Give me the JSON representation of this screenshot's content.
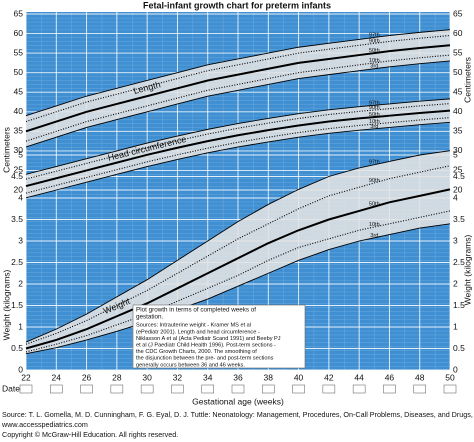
{
  "chart_data": {
    "type": "line",
    "title": "Fetal-infant growth chart for preterm infants",
    "xlabel": "Gestational age (weeks)",
    "date_label": "Date:",
    "ylabel": "Centimeters",
    "y2label": "Weight (kilograms)",
    "x": [
      22,
      24,
      26,
      28,
      30,
      32,
      34,
      36,
      38,
      40,
      42,
      44,
      46,
      48,
      50
    ],
    "xlim": [
      22,
      50
    ],
    "xticks": [
      22,
      24,
      26,
      28,
      30,
      32,
      34,
      36,
      38,
      40,
      42,
      44,
      46,
      48,
      50
    ],
    "ylim": [
      20,
      65
    ],
    "yticks": [
      20,
      25,
      30,
      35,
      40,
      45,
      50,
      55,
      60,
      65
    ],
    "y2lim": [
      0,
      5
    ],
    "y2ticks": [
      0,
      0.5,
      1,
      1.5,
      2,
      2.5,
      3,
      3.5,
      4,
      4.5,
      5
    ],
    "grid": true,
    "background": "#3f8fd2",
    "band_color": "#e4e4e4",
    "groups": [
      {
        "label": "Length",
        "axis": "y",
        "series": [
          {
            "name": "97th",
            "style": "solid",
            "values": [
              39,
              41.5,
              44,
              46,
              48,
              50,
              52,
              53.5,
              55,
              56.5,
              57.5,
              58.5,
              59.5,
              60.3,
              61
            ]
          },
          {
            "name": "90th",
            "style": "dotted",
            "values": [
              37.5,
              40,
              42.5,
              44.5,
              46.5,
              48.5,
              50.5,
              52,
              53.5,
              55,
              56,
              57,
              58,
              58.8,
              59.5
            ]
          },
          {
            "name": "50th",
            "style": "bold",
            "values": [
              35,
              37.5,
              40,
              42,
              44,
              46,
              48,
              49.5,
              51,
              52.5,
              53.5,
              54.5,
              55.5,
              56.3,
              57
            ]
          },
          {
            "name": "10th",
            "style": "dotted",
            "values": [
              32.5,
              35,
              37.5,
              39.5,
              41.5,
              43.5,
              45.5,
              47,
              48.5,
              50,
              51,
              52,
              53,
              53.8,
              54.5
            ]
          },
          {
            "name": "3rd",
            "style": "solid",
            "values": [
              31,
              33.5,
              36,
              38,
              40,
              42,
              44,
              45.5,
              47,
              48.5,
              49.5,
              50.5,
              51.5,
              52.3,
              53
            ]
          }
        ]
      },
      {
        "label": "Head circumference",
        "axis": "y",
        "series": [
          {
            "name": "97th",
            "style": "solid",
            "values": [
              24,
              26,
              28,
              30,
              32,
              33.8,
              35.5,
              37,
              38.3,
              39.5,
              40.5,
              41.3,
              42,
              42.7,
              43.3
            ]
          },
          {
            "name": "90th",
            "style": "dotted",
            "values": [
              22.8,
              24.8,
              26.8,
              28.8,
              30.8,
              32.6,
              34.3,
              35.8,
              37.1,
              38.3,
              39.3,
              40.1,
              40.8,
              41.5,
              42.1
            ]
          },
          {
            "name": "50th",
            "style": "bold",
            "values": [
              21,
              23,
              25,
              27,
              29,
              30.8,
              32.5,
              34,
              35.3,
              36.5,
              37.5,
              38.3,
              39,
              39.7,
              40.3
            ]
          },
          {
            "name": "10th",
            "style": "dotted",
            "values": [
              19.2,
              21.2,
              23.2,
              25.2,
              27.2,
              29,
              30.7,
              32.2,
              33.5,
              34.7,
              35.7,
              36.5,
              37.2,
              37.9,
              38.5
            ]
          },
          {
            "name": "3rd",
            "style": "solid",
            "values": [
              18,
              20,
              22,
              24,
              26,
              27.8,
              29.5,
              31,
              32.3,
              33.5,
              34.5,
              35.3,
              36,
              36.7,
              37.3
            ]
          }
        ]
      },
      {
        "label": "Weight",
        "axis": "y2",
        "series": [
          {
            "name": "97th",
            "style": "solid",
            "values": [
              0.65,
              0.95,
              1.3,
              1.7,
              2.1,
              2.55,
              3.0,
              3.45,
              3.85,
              4.2,
              4.5,
              4.7,
              4.85,
              5.0,
              5.1
            ]
          },
          {
            "name": "90th",
            "style": "dotted",
            "values": [
              0.6,
              0.85,
              1.15,
              1.5,
              1.85,
              2.25,
              2.65,
              3.05,
              3.4,
              3.75,
              4.05,
              4.25,
              4.45,
              4.6,
              4.75
            ]
          },
          {
            "name": "50th",
            "style": "bold",
            "values": [
              0.5,
              0.7,
              0.95,
              1.25,
              1.55,
              1.9,
              2.25,
              2.6,
              2.95,
              3.25,
              3.5,
              3.7,
              3.9,
              4.05,
              4.2
            ]
          },
          {
            "name": "10th",
            "style": "dotted",
            "values": [
              0.42,
              0.6,
              0.8,
              1.05,
              1.3,
              1.6,
              1.9,
              2.2,
              2.55,
              2.85,
              3.05,
              3.25,
              3.4,
              3.55,
              3.7
            ]
          },
          {
            "name": "3rd",
            "style": "solid",
            "values": [
              0.38,
              0.52,
              0.7,
              0.9,
              1.12,
              1.4,
              1.65,
              1.95,
              2.25,
              2.55,
              2.8,
              3.0,
              3.15,
              3.3,
              3.4
            ]
          }
        ]
      }
    ],
    "note": [
      "Plot growth in terms of completed weeks of",
      "gestation.",
      "Sources: Intrauterine weight - Kramer MS et al",
      "(ePediatr 2001). Length and head circumference -",
      "Niklasson A et al (Acta Pediatr Scand 1991) and Beeby PJ",
      "et al (J Paediatr Child Health 1996). Post-term sections -",
      "the CDC Growth Charts, 2000. The smoothing of",
      "the disjunction between the pre- and post-term sections",
      "generally occurs between 36 and 46 weeks."
    ]
  },
  "footer": [
    "Source: T. L. Gomella, M. D. Cunningham, F. G. Eyal, D. J. Tuttle: Neonatology: Management, Procedures, On-Call Problems, Diseases, and Drugs, 7th Ed.",
    "www.accesspediatrics.com",
    "Copyright © McGraw-Hill Education. All rights reserved."
  ]
}
